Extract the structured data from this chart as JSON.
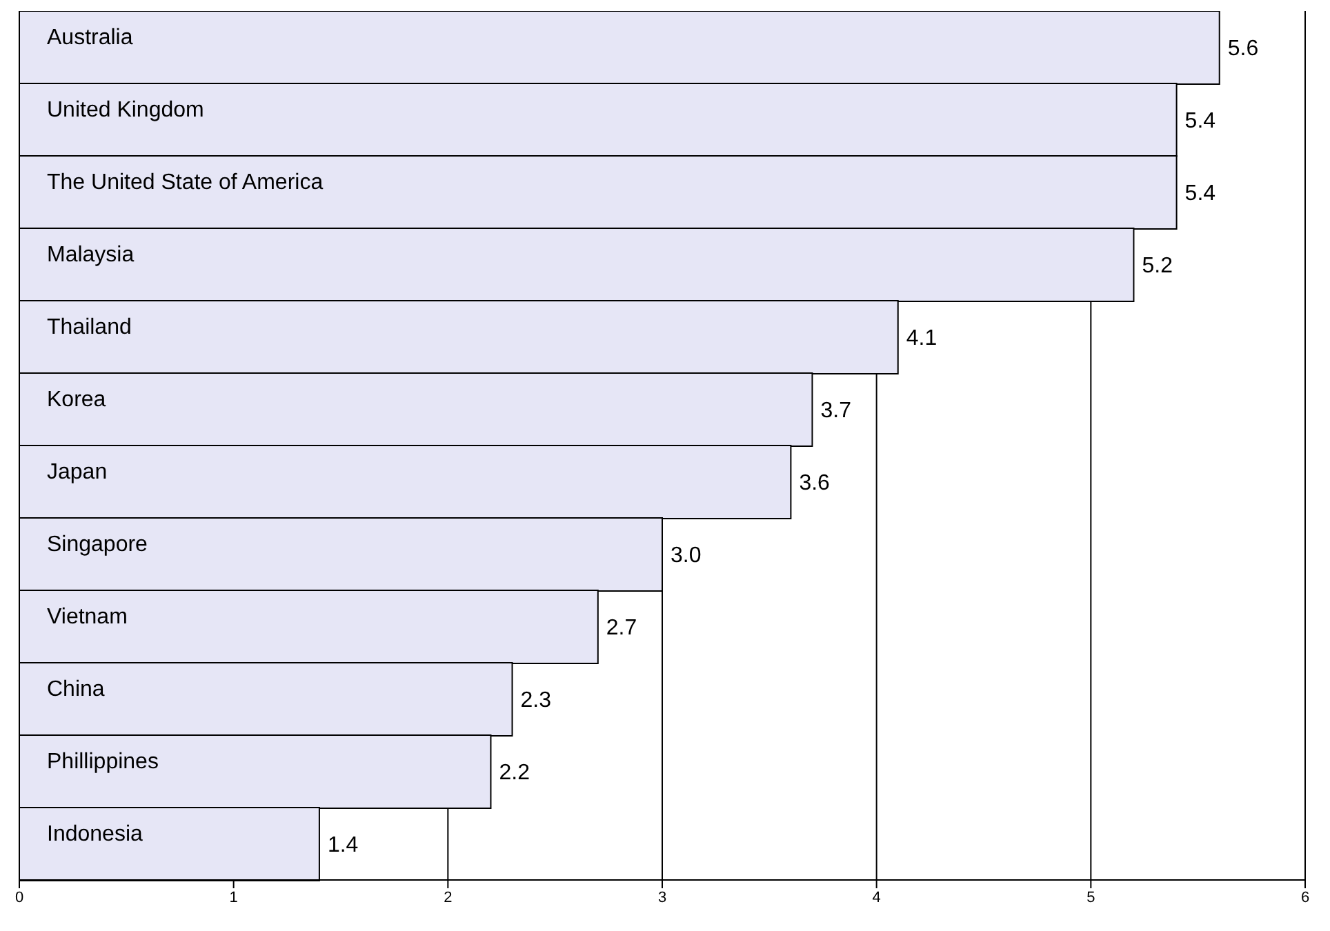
{
  "chart_data": {
    "type": "bar",
    "orientation": "horizontal",
    "categories": [
      "Australia",
      "United Kingdom",
      "The United State of America",
      "Malaysia",
      "Thailand",
      "Korea",
      "Japan",
      "Singapore",
      "Vietnam",
      "China",
      "Phillippines",
      "Indonesia"
    ],
    "values": [
      5.6,
      5.4,
      5.4,
      5.2,
      4.1,
      3.7,
      3.6,
      3.0,
      2.7,
      2.3,
      2.2,
      1.4
    ],
    "value_labels": [
      "5.6",
      "5.4",
      "5.4",
      "5.2",
      "4.1",
      "3.7",
      "3.6",
      "3.0",
      "2.7",
      "2.3",
      "2.2",
      "1.4"
    ],
    "color": "#e6e6f6",
    "xlim": [
      0,
      6
    ],
    "xticks": [
      0,
      1,
      2,
      3,
      4,
      5,
      6
    ],
    "grid": "x"
  }
}
